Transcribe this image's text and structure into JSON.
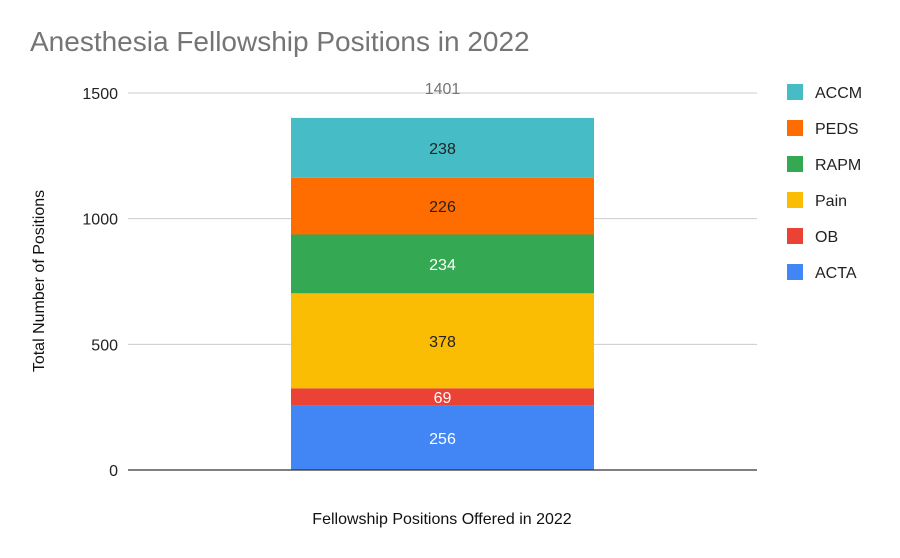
{
  "chart_data": {
    "type": "bar",
    "stacked": true,
    "title": "Anesthesia Fellowship Positions in 2022",
    "xlabel": "Fellowship Positions Offered in 2022",
    "ylabel": "Total Number of Positions",
    "categories": [
      ""
    ],
    "ylim": [
      0,
      1500
    ],
    "yticks": [
      0,
      500,
      1000,
      1500
    ],
    "ytick_labels": [
      "0",
      "500",
      "1000",
      "1500"
    ],
    "grid": true,
    "legend_position": "right",
    "total": 1401,
    "total_label": "1401",
    "series": [
      {
        "name": "ACTA",
        "values": [
          256
        ],
        "label": "256",
        "color": "#4285F4",
        "label_color": "#ffffff"
      },
      {
        "name": "OB",
        "values": [
          69
        ],
        "label": "69",
        "color": "#EA4335",
        "label_color": "#ffffff"
      },
      {
        "name": "Pain",
        "values": [
          378
        ],
        "label": "378",
        "color": "#FBBC04",
        "label_color": "#222222"
      },
      {
        "name": "RAPM",
        "values": [
          234
        ],
        "label": "234",
        "color": "#34A853",
        "label_color": "#ffffff"
      },
      {
        "name": "PEDS",
        "values": [
          226
        ],
        "label": "226",
        "color": "#FF6D01",
        "label_color": "#222222"
      },
      {
        "name": "ACCM",
        "values": [
          238
        ],
        "label": "238",
        "color": "#46BDC6",
        "label_color": "#222222"
      }
    ],
    "legend_order": [
      "ACCM",
      "PEDS",
      "RAPM",
      "Pain",
      "OB",
      "ACTA"
    ]
  }
}
